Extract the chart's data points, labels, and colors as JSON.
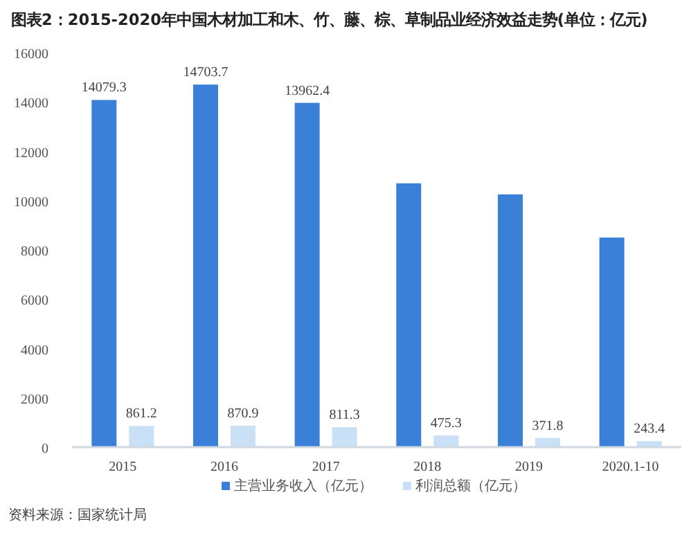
{
  "chart_data": {
    "type": "bar",
    "title": "图表2：2015-2020年中国木材加工和木、竹、藤、棕、草制品业经济效益走势(单位：亿元)",
    "categories": [
      "2015",
      "2016",
      "2017",
      "2018",
      "2019",
      "2020.1-10"
    ],
    "series": [
      {
        "name": "主营业务收入（亿元）",
        "color": "#3a7fd8",
        "values": [
          14079.3,
          14703.7,
          13962.4,
          10700,
          10250,
          8500
        ],
        "value_labels": [
          "14079.3",
          "14703.7",
          "13962.4",
          null,
          null,
          null
        ]
      },
      {
        "name": "利润总额（亿元）",
        "color": "#c9e0f7",
        "values": [
          861.2,
          870.9,
          811.3,
          475.3,
          371.8,
          243.4
        ],
        "value_labels": [
          "861.2",
          "870.9",
          "811.3",
          "475.3",
          "371.8",
          "243.4"
        ]
      }
    ],
    "ylim": [
      0,
      16000
    ],
    "yticks": [
      0,
      2000,
      4000,
      6000,
      8000,
      10000,
      12000,
      14000,
      16000
    ],
    "legend": "bottom",
    "annotations": [
      "资料来源：国家统计局"
    ]
  }
}
